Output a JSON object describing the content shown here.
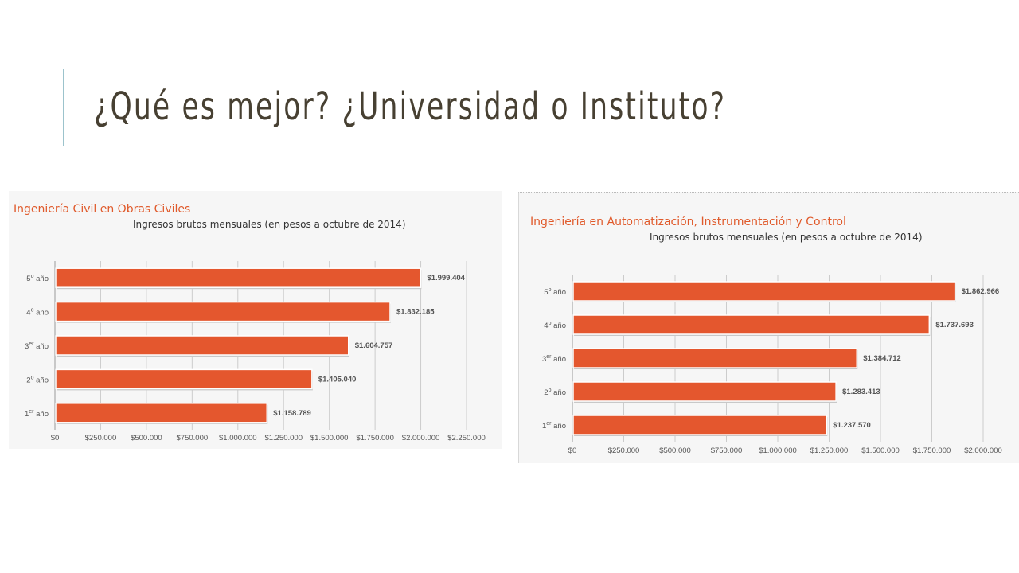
{
  "slide": {
    "title": "¿Qué es mejor? ¿Universidad o Instituto?",
    "colors": {
      "title": "#474032",
      "accent_line": "#9cc3cc"
    }
  },
  "chart_data": [
    {
      "type": "bar",
      "orientation": "horizontal",
      "title": "Ingeniería Civil en Obras Civiles",
      "subtitle": "Ingresos brutos mensuales (en pesos a octubre de 2014)",
      "categories": [
        {
          "num": "5",
          "sup": "o",
          "rest": " año"
        },
        {
          "num": "4",
          "sup": "o",
          "rest": " año"
        },
        {
          "num": "3",
          "sup": "er",
          "rest": " año"
        },
        {
          "num": "2",
          "sup": "o",
          "rest": " año"
        },
        {
          "num": "1",
          "sup": "er",
          "rest": " año"
        }
      ],
      "values": [
        1999404,
        1832185,
        1604757,
        1405040,
        1158789
      ],
      "value_labels": [
        "$1.999.404",
        "$1.832.185",
        "$1.604.757",
        "$1.405.040",
        "$1.158.789"
      ],
      "xlim": [
        0,
        2250000
      ],
      "x_ticks": [
        "$0",
        "$250.000",
        "$500.000",
        "$750.000",
        "$1.000.000",
        "$1.250.000",
        "$1.500.000",
        "$1.750.000",
        "$2.000.000",
        "$2.250.000"
      ],
      "grid": true,
      "colors": {
        "bar": "#e4572e",
        "title": "#e05a2b",
        "background": "#f6f6f6",
        "grid": "#cccccc"
      }
    },
    {
      "type": "bar",
      "orientation": "horizontal",
      "title": "Ingeniería en Automatización, Instrumentación y Control",
      "subtitle": "Ingresos brutos mensuales (en pesos a octubre de 2014)",
      "categories": [
        {
          "num": "5",
          "sup": "o",
          "rest": " año"
        },
        {
          "num": "4",
          "sup": "o",
          "rest": " año"
        },
        {
          "num": "3",
          "sup": "er",
          "rest": " año"
        },
        {
          "num": "2",
          "sup": "o",
          "rest": " año"
        },
        {
          "num": "1",
          "sup": "er",
          "rest": " año"
        }
      ],
      "values": [
        1862966,
        1737693,
        1384712,
        1283413,
        1237570
      ],
      "value_labels": [
        "$1.862.966",
        "$1.737.693",
        "$1.384.712",
        "$1.283.413",
        "$1.237.570"
      ],
      "xlim": [
        0,
        2000000
      ],
      "x_ticks": [
        "$0",
        "$250.000",
        "$500.000",
        "$750.000",
        "$1.000.000",
        "$1.250.000",
        "$1.500.000",
        "$1.750.000",
        "$2.000.000"
      ],
      "grid": true,
      "colors": {
        "bar": "#e4572e",
        "title": "#e05a2b",
        "background": "#f6f6f6",
        "grid": "#cccccc"
      }
    }
  ]
}
